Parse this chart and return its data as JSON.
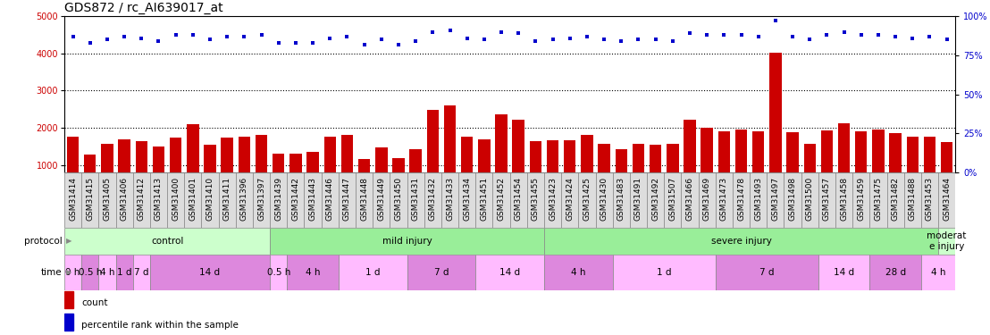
{
  "title": "GDS872 / rc_AI639017_at",
  "samples": [
    "GSM31414",
    "GSM31415",
    "GSM31405",
    "GSM31406",
    "GSM31412",
    "GSM31413",
    "GSM31400",
    "GSM31401",
    "GSM31410",
    "GSM31411",
    "GSM31396",
    "GSM31397",
    "GSM31439",
    "GSM31442",
    "GSM31443",
    "GSM31446",
    "GSM31447",
    "GSM31448",
    "GSM31449",
    "GSM31450",
    "GSM31431",
    "GSM31432",
    "GSM31433",
    "GSM31434",
    "GSM31451",
    "GSM31452",
    "GSM31454",
    "GSM31455",
    "GSM31423",
    "GSM31424",
    "GSM31425",
    "GSM31430",
    "GSM31483",
    "GSM31491",
    "GSM31492",
    "GSM31507",
    "GSM31466",
    "GSM31469",
    "GSM31473",
    "GSM31478",
    "GSM31493",
    "GSM31497",
    "GSM31498",
    "GSM31500",
    "GSM31457",
    "GSM31458",
    "GSM31459",
    "GSM31475",
    "GSM31482",
    "GSM31488",
    "GSM31453",
    "GSM31464"
  ],
  "counts": [
    1750,
    1280,
    1570,
    1700,
    1650,
    1490,
    1730,
    2090,
    1550,
    1730,
    1750,
    1820,
    1310,
    1310,
    1350,
    1750,
    1800,
    1150,
    1470,
    1180,
    1430,
    2480,
    2600,
    1750,
    1680,
    2360,
    2220,
    1630,
    1660,
    1660,
    1820,
    1580,
    1430,
    1560,
    1540,
    1560,
    2210,
    1990,
    1900,
    1950,
    1900,
    4020,
    1890,
    1560,
    1920,
    2110,
    1910,
    1960,
    1860,
    1750,
    1760,
    1620
  ],
  "percentiles": [
    87,
    83,
    85,
    87,
    86,
    84,
    88,
    88,
    85,
    87,
    87,
    88,
    83,
    83,
    83,
    86,
    87,
    82,
    85,
    82,
    84,
    90,
    91,
    86,
    85,
    90,
    89,
    84,
    85,
    86,
    87,
    85,
    84,
    85,
    85,
    84,
    89,
    88,
    88,
    88,
    87,
    97,
    87,
    85,
    88,
    90,
    88,
    88,
    87,
    86,
    87,
    85
  ],
  "protocol_groups": [
    {
      "label": "control",
      "start": 0,
      "end": 11,
      "color": "#ccffcc"
    },
    {
      "label": "mild injury",
      "start": 12,
      "end": 27,
      "color": "#99ee99"
    },
    {
      "label": "severe injury",
      "start": 28,
      "end": 50,
      "color": "#99ee99"
    },
    {
      "label": "moderat\ne injury",
      "start": 51,
      "end": 51,
      "color": "#ccffcc"
    }
  ],
  "time_groups": [
    {
      "label": "0 h",
      "start": 0,
      "end": 0,
      "color": "#ffbbff"
    },
    {
      "label": "0.5 h",
      "start": 1,
      "end": 1,
      "color": "#dd88dd"
    },
    {
      "label": "4 h",
      "start": 2,
      "end": 2,
      "color": "#ffbbff"
    },
    {
      "label": "1 d",
      "start": 3,
      "end": 3,
      "color": "#dd88dd"
    },
    {
      "label": "7 d",
      "start": 4,
      "end": 4,
      "color": "#ffbbff"
    },
    {
      "label": "14 d",
      "start": 5,
      "end": 11,
      "color": "#dd88dd"
    },
    {
      "label": "0.5 h",
      "start": 12,
      "end": 12,
      "color": "#ffbbff"
    },
    {
      "label": "4 h",
      "start": 13,
      "end": 15,
      "color": "#dd88dd"
    },
    {
      "label": "1 d",
      "start": 16,
      "end": 19,
      "color": "#ffbbff"
    },
    {
      "label": "7 d",
      "start": 20,
      "end": 23,
      "color": "#dd88dd"
    },
    {
      "label": "14 d",
      "start": 24,
      "end": 27,
      "color": "#ffbbff"
    },
    {
      "label": "4 h",
      "start": 28,
      "end": 31,
      "color": "#dd88dd"
    },
    {
      "label": "1 d",
      "start": 32,
      "end": 37,
      "color": "#ffbbff"
    },
    {
      "label": "7 d",
      "start": 38,
      "end": 43,
      "color": "#dd88dd"
    },
    {
      "label": "14 d",
      "start": 44,
      "end": 46,
      "color": "#ffbbff"
    },
    {
      "label": "28 d",
      "start": 47,
      "end": 49,
      "color": "#dd88dd"
    },
    {
      "label": "4 h",
      "start": 50,
      "end": 51,
      "color": "#ffbbff"
    }
  ],
  "ylim_left": [
    800,
    5000
  ],
  "ylim_right": [
    0,
    100
  ],
  "yticks_left": [
    1000,
    2000,
    3000,
    4000,
    5000
  ],
  "yticks_right": [
    0,
    25,
    50,
    75,
    100
  ],
  "bar_color": "#cc0000",
  "dot_color": "#0000cc",
  "grid_color": "#000000",
  "bg_color": "#ffffff",
  "title_fontsize": 10,
  "tick_fontsize": 6.5,
  "label_fontsize": 8
}
